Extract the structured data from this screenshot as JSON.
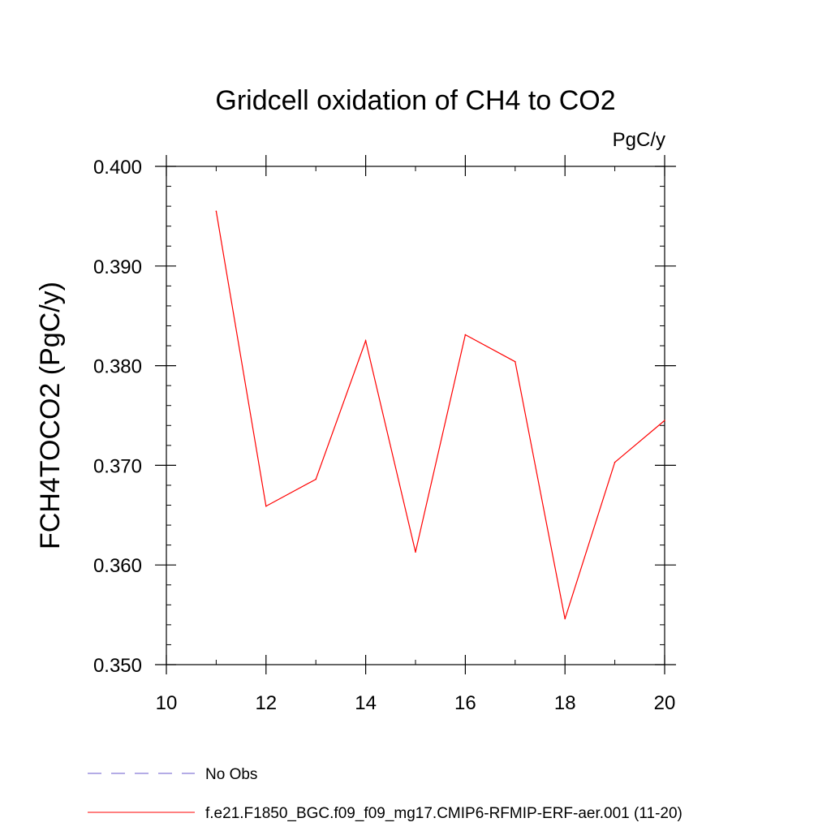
{
  "chart_data": {
    "type": "line",
    "title": "Gridcell oxidation of CH4 to CO2",
    "units_label": "PgC/y",
    "ylabel": "FCH4TOCO2  (PgC/y)",
    "xlabel": "",
    "xlim": [
      10,
      20
    ],
    "ylim": [
      0.35,
      0.4
    ],
    "x_ticks": [
      10,
      12,
      14,
      16,
      18,
      20
    ],
    "x_tick_labels": [
      "10",
      "12",
      "14",
      "16",
      "18",
      "20"
    ],
    "y_ticks": [
      0.35,
      0.36,
      0.37,
      0.38,
      0.39,
      0.4
    ],
    "y_tick_labels": [
      "0.350",
      "0.360",
      "0.370",
      "0.380",
      "0.390",
      "0.400"
    ],
    "series": [
      {
        "name": "f.e21.F1850_BGC.f09_f09_mg17.CMIP6-RFMIP-ERF-aer.001 (11-20)",
        "color": "#ff0000",
        "style": "solid",
        "x": [
          11,
          12,
          13,
          14,
          15,
          16,
          17,
          18,
          19,
          20
        ],
        "values": [
          0.3955,
          0.3659,
          0.3686,
          0.3825,
          0.3613,
          0.3831,
          0.3804,
          0.3546,
          0.3703,
          0.3745
        ]
      }
    ],
    "legend": [
      {
        "label": "No Obs",
        "color": "#6a5acd",
        "style": "dashed"
      },
      {
        "label": "f.e21.F1850_BGC.f09_f09_mg17.CMIP6-RFMIP-ERF-aer.001 (11-20)",
        "color": "#ff0000",
        "style": "solid"
      }
    ],
    "legend_position": "bottom-left"
  }
}
